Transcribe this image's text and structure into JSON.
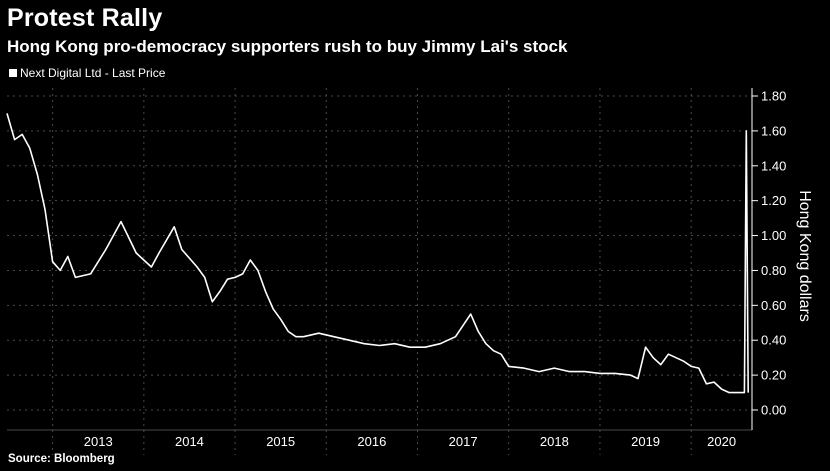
{
  "header": {
    "title": "Protest Rally",
    "subtitle": "Hong Kong pro-democracy supporters rush to buy Jimmy Lai's stock"
  },
  "legend": {
    "label": "Next Digital Ltd - Last Price"
  },
  "footer": {
    "source": "Source: Bloomberg"
  },
  "colors": {
    "background": "#000000",
    "line": "#ffffff",
    "grid": "#4a4a4a"
  },
  "chart_data": {
    "type": "line",
    "title": "Protest Rally",
    "subtitle": "Hong Kong pro-democracy supporters rush to buy Jimmy Lai's stock",
    "ylabel": "Hong Kong dollars",
    "xlabel": "",
    "ylim": [
      0,
      1.8
    ],
    "yticks": [
      "0.00",
      "0.20",
      "0.40",
      "0.60",
      "0.80",
      "1.00",
      "1.20",
      "1.40",
      "1.60",
      "1.80"
    ],
    "xticks": [
      "2013",
      "2014",
      "2015",
      "2016",
      "2017",
      "2018",
      "2019",
      "2020"
    ],
    "xlim": [
      "2012-07",
      "2020-09"
    ],
    "grid": true,
    "legend_position": "top-left",
    "y_axis_side": "right",
    "series": [
      {
        "name": "Next Digital Ltd - Last Price",
        "x": [
          "2012-07",
          "2012-08",
          "2012-09",
          "2012-10",
          "2012-11",
          "2012-12",
          "2013-01",
          "2013-02",
          "2013-03",
          "2013-04",
          "2013-06",
          "2013-08",
          "2013-10",
          "2013-12",
          "2014-01",
          "2014-02",
          "2014-03",
          "2014-05",
          "2014-06",
          "2014-08",
          "2014-09",
          "2014-10",
          "2014-11",
          "2014-12",
          "2015-01",
          "2015-02",
          "2015-03",
          "2015-04",
          "2015-05",
          "2015-06",
          "2015-07",
          "2015-08",
          "2015-09",
          "2015-10",
          "2015-12",
          "2016-02",
          "2016-04",
          "2016-06",
          "2016-08",
          "2016-10",
          "2016-12",
          "2017-02",
          "2017-04",
          "2017-06",
          "2017-08",
          "2017-09",
          "2017-10",
          "2017-11",
          "2017-12",
          "2018-01",
          "2018-03",
          "2018-05",
          "2018-07",
          "2018-09",
          "2018-11",
          "2019-01",
          "2019-03",
          "2019-05",
          "2019-06",
          "2019-07",
          "2019-08",
          "2019-09",
          "2019-10",
          "2019-11",
          "2019-12",
          "2020-01",
          "2020-02",
          "2020-03",
          "2020-04",
          "2020-05",
          "2020-06",
          "2020-07",
          "2020-08",
          "2020-08",
          "2020-08"
        ],
        "y": [
          1.7,
          1.55,
          1.58,
          1.5,
          1.35,
          1.15,
          0.85,
          0.8,
          0.88,
          0.76,
          0.78,
          0.92,
          1.08,
          0.9,
          0.86,
          0.82,
          0.9,
          1.05,
          0.92,
          0.82,
          0.76,
          0.62,
          0.68,
          0.75,
          0.76,
          0.78,
          0.86,
          0.8,
          0.68,
          0.58,
          0.52,
          0.45,
          0.42,
          0.42,
          0.44,
          0.42,
          0.4,
          0.38,
          0.37,
          0.38,
          0.36,
          0.36,
          0.38,
          0.42,
          0.55,
          0.45,
          0.38,
          0.34,
          0.32,
          0.25,
          0.24,
          0.22,
          0.24,
          0.22,
          0.22,
          0.21,
          0.21,
          0.2,
          0.18,
          0.36,
          0.3,
          0.26,
          0.32,
          0.3,
          0.28,
          0.25,
          0.24,
          0.15,
          0.16,
          0.12,
          0.1,
          0.1,
          0.1,
          1.6,
          0.1
        ]
      }
    ]
  }
}
